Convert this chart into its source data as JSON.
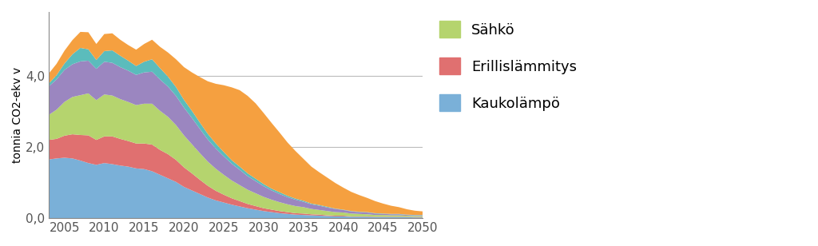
{
  "years": [
    2003,
    2004,
    2005,
    2006,
    2007,
    2008,
    2009,
    2010,
    2011,
    2012,
    2013,
    2014,
    2015,
    2016,
    2017,
    2018,
    2019,
    2020,
    2021,
    2022,
    2023,
    2024,
    2025,
    2026,
    2027,
    2028,
    2029,
    2030,
    2031,
    2032,
    2033,
    2034,
    2035,
    2036,
    2037,
    2038,
    2039,
    2040,
    2041,
    2042,
    2043,
    2044,
    2045,
    2046,
    2047,
    2048,
    2049,
    2050
  ],
  "kaukolampo": [
    1.65,
    1.68,
    1.7,
    1.68,
    1.62,
    1.55,
    1.5,
    1.55,
    1.52,
    1.48,
    1.45,
    1.4,
    1.38,
    1.32,
    1.22,
    1.12,
    1.02,
    0.88,
    0.78,
    0.68,
    0.58,
    0.5,
    0.44,
    0.38,
    0.33,
    0.28,
    0.24,
    0.2,
    0.17,
    0.14,
    0.12,
    0.1,
    0.09,
    0.08,
    0.07,
    0.06,
    0.05,
    0.05,
    0.04,
    0.04,
    0.04,
    0.03,
    0.03,
    0.03,
    0.03,
    0.03,
    0.02,
    0.02
  ],
  "erillislammitys": [
    0.55,
    0.55,
    0.62,
    0.68,
    0.72,
    0.78,
    0.7,
    0.75,
    0.78,
    0.75,
    0.72,
    0.7,
    0.72,
    0.75,
    0.7,
    0.68,
    0.62,
    0.55,
    0.48,
    0.4,
    0.33,
    0.27,
    0.22,
    0.18,
    0.15,
    0.12,
    0.1,
    0.08,
    0.07,
    0.06,
    0.05,
    0.04,
    0.04,
    0.03,
    0.03,
    0.02,
    0.02,
    0.02,
    0.01,
    0.01,
    0.01,
    0.01,
    0.01,
    0.01,
    0.01,
    0.01,
    0.01,
    0.01
  ],
  "sahko": [
    0.7,
    0.82,
    0.95,
    1.05,
    1.12,
    1.18,
    1.12,
    1.18,
    1.15,
    1.12,
    1.1,
    1.08,
    1.12,
    1.15,
    1.1,
    1.05,
    0.98,
    0.9,
    0.82,
    0.75,
    0.68,
    0.62,
    0.56,
    0.5,
    0.45,
    0.4,
    0.36,
    0.32,
    0.28,
    0.25,
    0.22,
    0.2,
    0.18,
    0.15,
    0.13,
    0.12,
    0.1,
    0.09,
    0.08,
    0.07,
    0.06,
    0.05,
    0.05,
    0.04,
    0.04,
    0.03,
    0.03,
    0.03
  ],
  "purple": [
    0.8,
    0.85,
    0.9,
    0.92,
    0.95,
    0.92,
    0.88,
    0.92,
    0.92,
    0.9,
    0.88,
    0.85,
    0.88,
    0.9,
    0.88,
    0.85,
    0.82,
    0.78,
    0.74,
    0.68,
    0.62,
    0.57,
    0.52,
    0.47,
    0.43,
    0.38,
    0.34,
    0.3,
    0.26,
    0.23,
    0.2,
    0.18,
    0.15,
    0.13,
    0.12,
    0.1,
    0.09,
    0.07,
    0.06,
    0.05,
    0.05,
    0.04,
    0.03,
    0.03,
    0.03,
    0.02,
    0.02,
    0.02
  ],
  "cyan": [
    0.08,
    0.12,
    0.18,
    0.28,
    0.38,
    0.32,
    0.25,
    0.3,
    0.35,
    0.32,
    0.28,
    0.25,
    0.3,
    0.35,
    0.32,
    0.28,
    0.25,
    0.22,
    0.2,
    0.18,
    0.16,
    0.14,
    0.12,
    0.1,
    0.09,
    0.08,
    0.07,
    0.06,
    0.05,
    0.05,
    0.04,
    0.03,
    0.03,
    0.02,
    0.02,
    0.02,
    0.01,
    0.01,
    0.01,
    0.01,
    0.01,
    0.01,
    0.01,
    0.01,
    0.01,
    0.01,
    0.01,
    0.01
  ],
  "orange": [
    0.28,
    0.32,
    0.36,
    0.4,
    0.45,
    0.48,
    0.45,
    0.48,
    0.48,
    0.45,
    0.44,
    0.46,
    0.5,
    0.55,
    0.6,
    0.68,
    0.78,
    0.92,
    1.08,
    1.28,
    1.48,
    1.68,
    1.88,
    2.05,
    2.15,
    2.18,
    2.12,
    2.0,
    1.85,
    1.68,
    1.5,
    1.34,
    1.18,
    1.04,
    0.92,
    0.82,
    0.72,
    0.62,
    0.54,
    0.47,
    0.4,
    0.34,
    0.28,
    0.23,
    0.19,
    0.15,
    0.12,
    0.1
  ],
  "colors": {
    "kaukolampo": "#7ab0d8",
    "erillislammitys": "#e07070",
    "sahko": "#b5d46e",
    "purple": "#9b86c0",
    "cyan": "#5bbcbc",
    "orange": "#f5a040"
  },
  "ylabel": "tonnia CO2-ekv v",
  "yticks": [
    0.0,
    2.0,
    4.0
  ],
  "ytick_labels": [
    "0,0",
    "2,0",
    "4,0"
  ],
  "xticks": [
    2005,
    2010,
    2015,
    2020,
    2025,
    2030,
    2035,
    2040,
    2045,
    2050
  ],
  "xlim_left": 2003,
  "xlim_right": 2050,
  "ylim": [
    0,
    5.8
  ],
  "background_color": "#ffffff"
}
